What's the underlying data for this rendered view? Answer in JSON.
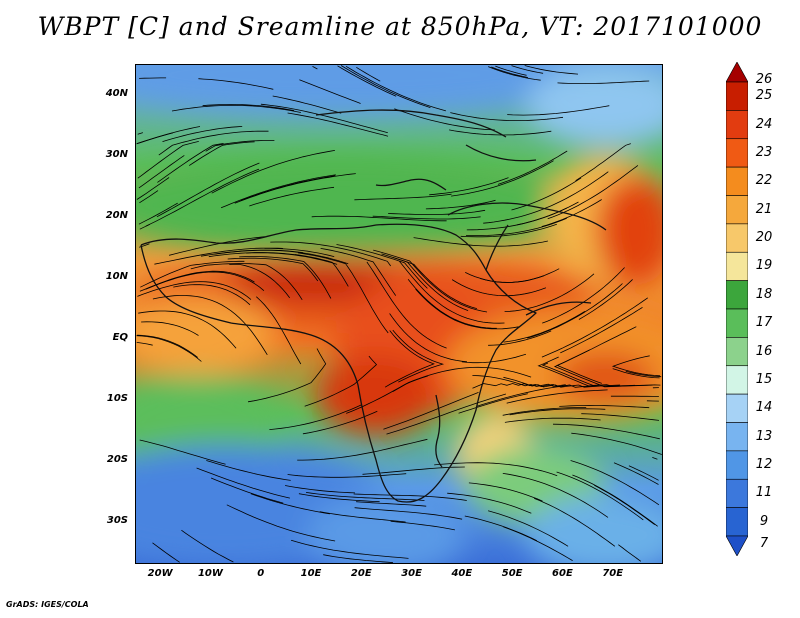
{
  "title": "WBPT [C] and Sreamline at 850hPa, VT: 2017101000",
  "credit": "GrADS: IGES/COLA",
  "map": {
    "projection": "lat-lon",
    "lon_range": [
      -25,
      80
    ],
    "lat_range": [
      -37,
      45
    ],
    "lat_labels": [
      {
        "text": "40N",
        "lat": 40
      },
      {
        "text": "30N",
        "lat": 30
      },
      {
        "text": "20N",
        "lat": 20
      },
      {
        "text": "10N",
        "lat": 10
      },
      {
        "text": "EQ",
        "lat": 0
      },
      {
        "text": "10S",
        "lat": -10
      },
      {
        "text": "20S",
        "lat": -20
      },
      {
        "text": "30S",
        "lat": -30
      }
    ],
    "lon_labels": [
      {
        "text": "20W",
        "lon": -20
      },
      {
        "text": "10W",
        "lon": -10
      },
      {
        "text": "0",
        "lon": 0
      },
      {
        "text": "10E",
        "lon": 10
      },
      {
        "text": "20E",
        "lon": 20
      },
      {
        "text": "30E",
        "lon": 30
      },
      {
        "text": "40E",
        "lon": 40
      },
      {
        "text": "50E",
        "lon": 50
      },
      {
        "text": "60E",
        "lon": 60
      },
      {
        "text": "70E",
        "lon": 70
      }
    ],
    "field": "wet-bulb potential temperature (shaded) with 850hPa streamlines",
    "warm_core": "central Africa / Sahel and Arabian Sea, 22-25",
    "cool_regions": "Mediterranean, South Atlantic and southern Indian Ocean, 7-13"
  },
  "colorbar": {
    "labels": [
      "26",
      "25",
      "24",
      "23",
      "22",
      "21",
      "20",
      "19",
      "18",
      "17",
      "16",
      "15",
      "14",
      "13",
      "12",
      "11",
      "9",
      "7"
    ],
    "colors": [
      "#a50000",
      "#c81e00",
      "#e23c10",
      "#f05a14",
      "#f48c1e",
      "#f5a83c",
      "#f7c86a",
      "#f5e69b",
      "#3ca63c",
      "#5abe5a",
      "#8cd28c",
      "#d2f5e6",
      "#a6d2f5",
      "#78b4f0",
      "#5096e6",
      "#3c78dc",
      "#2864d2",
      "#1e50c8"
    ]
  }
}
